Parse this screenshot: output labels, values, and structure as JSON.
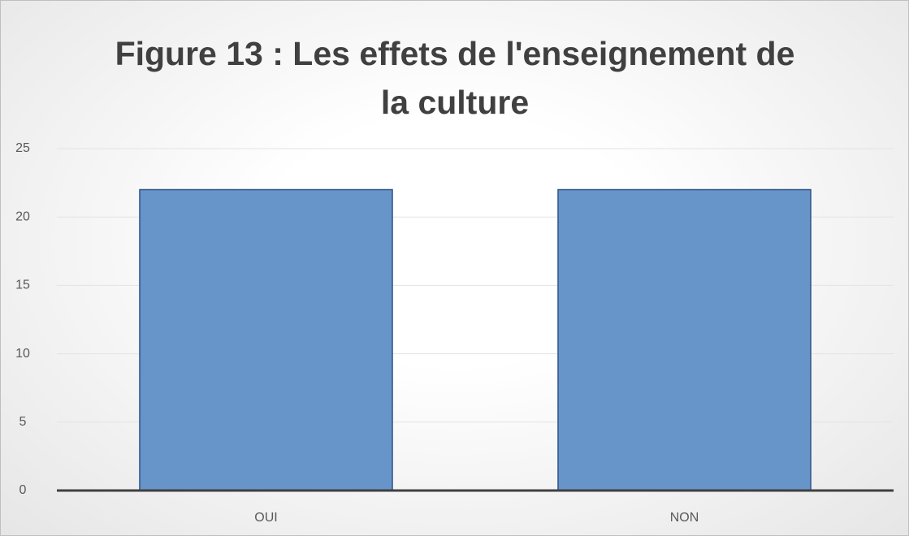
{
  "chart_data": {
    "type": "bar",
    "title": "Figure 13 : Les effets de l'enseignement de la culture",
    "categories": [
      "OUI",
      "NON"
    ],
    "values": [
      22,
      22
    ],
    "color": "#6794c9",
    "ylim": [
      0,
      25
    ],
    "yticks": [
      0,
      5,
      10,
      15,
      20,
      25
    ],
    "grid": true
  }
}
